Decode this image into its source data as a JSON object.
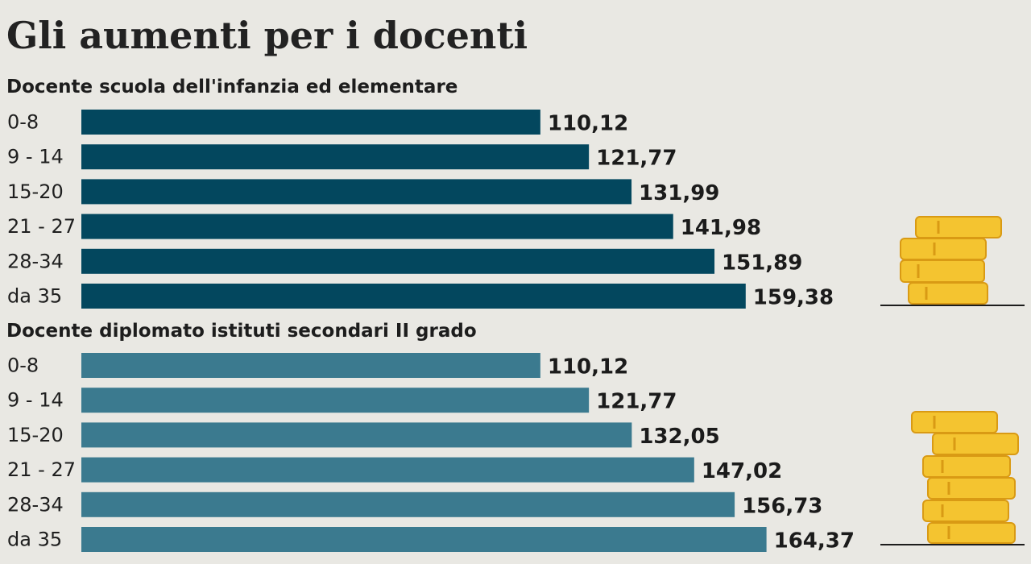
{
  "title": "Gli aumenti per i docenti",
  "colors": {
    "background": "#e9e8e3",
    "bar_primary": "#03475e",
    "bar_secondary": "#3b7a8f",
    "coin": "#f4c430",
    "coin_shadow": "#d99a14"
  },
  "chart_data": [
    {
      "type": "bar",
      "orientation": "horizontal",
      "title": "Docente scuola dell'infanzia ed elementare",
      "categories": [
        "0-8",
        "9 - 14",
        "15-20",
        "21 - 27",
        "28-34",
        "da 35"
      ],
      "values": [
        110.12,
        121.77,
        131.99,
        141.98,
        151.89,
        159.38
      ],
      "value_labels": [
        "110,12",
        "121,77",
        "131,99",
        "141,98",
        "151,89",
        "159,38"
      ],
      "color": "#03475e",
      "grid": false
    },
    {
      "type": "bar",
      "orientation": "horizontal",
      "title": "Docente diplomato istituti secondari II grado",
      "categories": [
        "0-8",
        "9 - 14",
        "15-20",
        "21 - 27",
        "28-34",
        "da 35"
      ],
      "values": [
        110.12,
        121.77,
        132.05,
        147.02,
        156.73,
        164.37
      ],
      "value_labels": [
        "110,12",
        "121,77",
        "132,05",
        "147,02",
        "156,73",
        "164,37"
      ],
      "color": "#3b7a8f",
      "grid": false
    }
  ]
}
